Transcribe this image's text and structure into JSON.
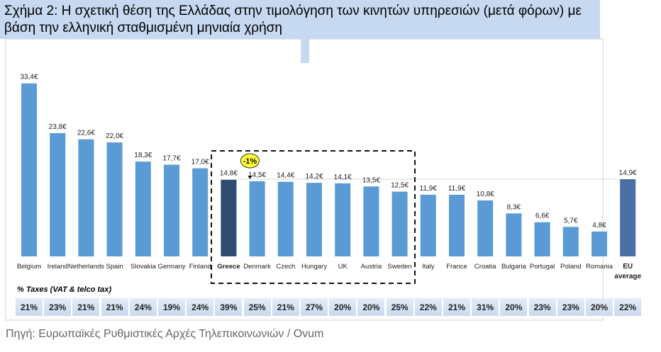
{
  "chart_data": {
    "type": "bar",
    "title": "Σχήμα 2: Η σχετική θέση της Ελλάδας στην τιμολόγηση των κινητών υπηρεσιών (μετά φόρων) με βάση την ελληνική σταθμισμένη μηνιαία χρήση",
    "categories": [
      "Belgium",
      "Ireland",
      "Netherlands",
      "Spain",
      "Slovakia",
      "Germany",
      "Finland",
      "Greece",
      "Denmark",
      "Czech",
      "Hungary",
      "UK",
      "Austria",
      "Sweden",
      "Italy",
      "France",
      "Croatia",
      "Bulgaria",
      "Portugal",
      "Poland",
      "Romania",
      "EU average"
    ],
    "values": [
      33.4,
      23.8,
      22.6,
      22.0,
      18.3,
      17.7,
      17.0,
      14.8,
      14.5,
      14.4,
      14.2,
      14.1,
      13.5,
      12.5,
      11.9,
      11.9,
      10.8,
      8.3,
      6.6,
      5.7,
      4.8,
      14.9
    ],
    "value_labels": [
      "33,4€",
      "23,8€",
      "22,6€",
      "22,0€",
      "18,3€",
      "17,7€",
      "17,0€",
      "14,8€",
      "14,5€",
      "14,4€",
      "14,2€",
      "14,1€",
      "13,5€",
      "12,5€",
      "11,9€",
      "11,9€",
      "10,8€",
      "8,3€",
      "6,6€",
      "5,7€",
      "4,8€",
      "14,9€"
    ],
    "colors": [
      "#5b9bd5",
      "#5b9bd5",
      "#5b9bd5",
      "#5b9bd5",
      "#5b9bd5",
      "#5b9bd5",
      "#5b9bd5",
      "#2f4b6f",
      "#5b9bd5",
      "#5b9bd5",
      "#5b9bd5",
      "#5b9bd5",
      "#5b9bd5",
      "#5b9bd5",
      "#5b9bd5",
      "#5b9bd5",
      "#5b9bd5",
      "#5b9bd5",
      "#5b9bd5",
      "#5b9bd5",
      "#5b9bd5",
      "#4a6fa5"
    ],
    "ylim": [
      0,
      35
    ],
    "annotation": "-1%",
    "taxes": {
      "label": "% Taxes (VAT & telco tax)",
      "values": [
        "21%",
        "23%",
        "21%",
        "21%",
        "24%",
        "19%",
        "24%",
        "39%",
        "25%",
        "21%",
        "27%",
        "20%",
        "20%",
        "25%",
        "22%",
        "21%",
        "31%",
        "20%",
        "23%",
        "23%",
        "20%",
        "22%"
      ]
    },
    "source": "Πηγή: Ευρωπαϊκές Ρυθμιστικές Αρχές Τηλεπικοινωνιών / Ovum"
  }
}
